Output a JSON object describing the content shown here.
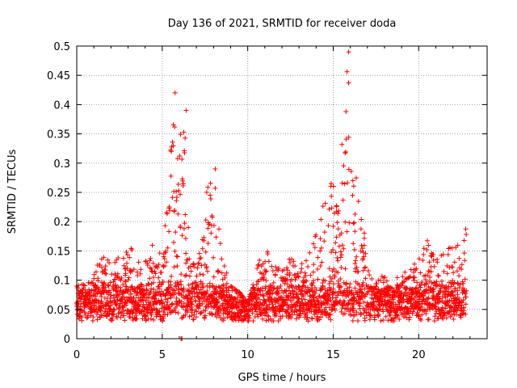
{
  "chart_data": {
    "type": "scatter",
    "title": "Day 136 of 2021, SRMTID for receiver doda",
    "xlabel": "GPS time / hours",
    "ylabel": "SRMTID / TECUs",
    "xlim": [
      0,
      24
    ],
    "ylim": [
      0,
      0.5
    ],
    "xticks": [
      0,
      5,
      10,
      15,
      20
    ],
    "xtick_labels": [
      "0",
      "5",
      "10",
      "15",
      "20"
    ],
    "yticks": [
      0,
      0.05,
      0.1,
      0.15,
      0.2,
      0.25,
      0.3,
      0.35,
      0.4,
      0.45,
      0.5
    ],
    "ytick_labels": [
      "0",
      "0.05",
      "0.1",
      "0.15",
      "0.2",
      "0.25",
      "0.3",
      "0.35",
      "0.4",
      "0.45",
      "0.5"
    ],
    "grid": true,
    "marker": "+",
    "color": "#ff0000",
    "envelope": {
      "description_hours": "approximate upper envelope of the point cloud (hour, max value)",
      "x": [
        0,
        0.5,
        1,
        1.5,
        2,
        2.5,
        3,
        3.5,
        4,
        4.5,
        5,
        5.3,
        5.7,
        6,
        6.3,
        6.6,
        7,
        7.5,
        8,
        8.5,
        9,
        9.5,
        10,
        10.5,
        11,
        11.5,
        12,
        12.5,
        13,
        13.5,
        14,
        14.5,
        14.8,
        15.2,
        15.5,
        15.8,
        16.2,
        16.6,
        17,
        17.5,
        18,
        18.5,
        19,
        19.5,
        20,
        20.5,
        21,
        21.5,
        22,
        22.5,
        22.8
      ],
      "y": [
        0.1,
        0.09,
        0.11,
        0.15,
        0.13,
        0.14,
        0.16,
        0.15,
        0.13,
        0.18,
        0.14,
        0.24,
        0.42,
        0.35,
        0.39,
        0.14,
        0.12,
        0.25,
        0.29,
        0.14,
        0.09,
        0.08,
        0.06,
        0.12,
        0.16,
        0.13,
        0.12,
        0.14,
        0.12,
        0.15,
        0.18,
        0.24,
        0.29,
        0.27,
        0.37,
        0.49,
        0.31,
        0.26,
        0.12,
        0.1,
        0.11,
        0.1,
        0.11,
        0.12,
        0.14,
        0.17,
        0.14,
        0.16,
        0.17,
        0.17,
        0.22
      ]
    },
    "baseline_range": [
      0.03,
      0.08
    ],
    "outliers": [
      {
        "x": 6.1,
        "y": 0.0
      },
      {
        "x": 6.15,
        "y": 0.0
      },
      {
        "x": 15.9,
        "y": 0.49
      },
      {
        "x": 5.75,
        "y": 0.42
      },
      {
        "x": 6.4,
        "y": 0.39
      },
      {
        "x": 8.1,
        "y": 0.29
      }
    ]
  }
}
